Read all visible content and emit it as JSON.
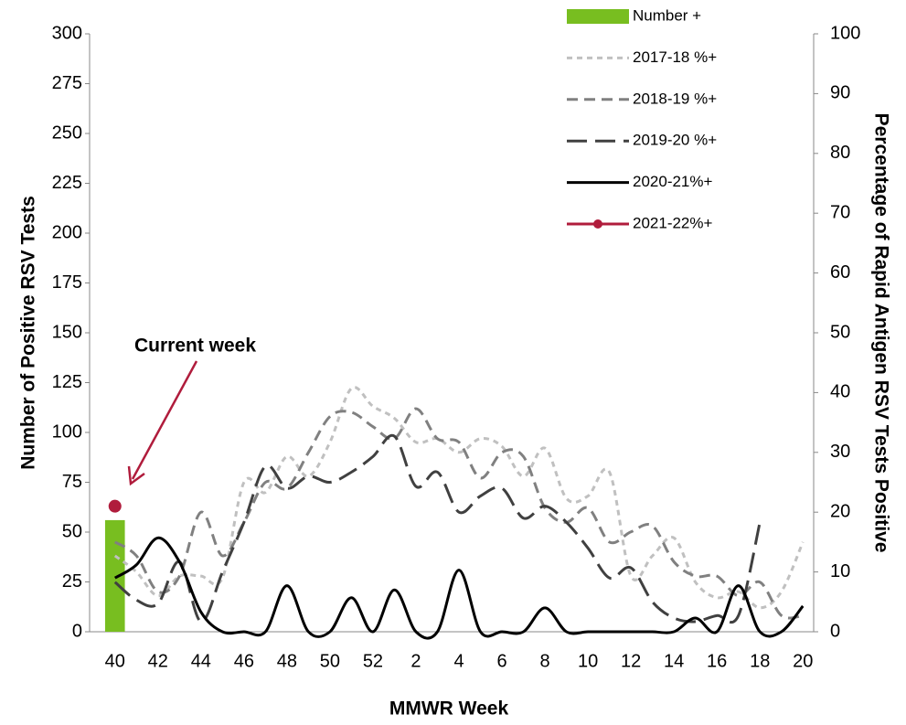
{
  "chart_data": {
    "type": "combo",
    "xlabel": "MMWR Week",
    "ylabel": "Number of Positive RSV Tests",
    "y2label": "Percentage of Rapid Antigen RSV Tests Positive",
    "categories": [
      40,
      null,
      42,
      null,
      44,
      null,
      46,
      null,
      48,
      null,
      50,
      null,
      52,
      null,
      2,
      null,
      4,
      null,
      6,
      null,
      8,
      null,
      10,
      null,
      12,
      null,
      14,
      null,
      16,
      null,
      18,
      null,
      20
    ],
    "ylim": [
      0,
      300
    ],
    "yticks": [
      0,
      25,
      50,
      75,
      100,
      125,
      150,
      175,
      200,
      225,
      250,
      275,
      300
    ],
    "y2lim": [
      0,
      100
    ],
    "y2ticks": [
      0,
      10,
      20,
      30,
      40,
      50,
      60,
      70,
      80,
      90,
      100
    ],
    "grid": false,
    "legend": "top-right",
    "series": [
      {
        "name": "Number +",
        "type": "bar",
        "color": "#78be20",
        "values": [
          56,
          null,
          null,
          null,
          null,
          null,
          null,
          null,
          null,
          null,
          null,
          null,
          null,
          null,
          null,
          null,
          null,
          null,
          null,
          null,
          null,
          null,
          null,
          null,
          null,
          null,
          null,
          null,
          null,
          null,
          null,
          null,
          null
        ]
      },
      {
        "name": "2017-18 %+",
        "type": "line",
        "axis": "y2",
        "color": "#c0c0c0",
        "dash": "short",
        "values": [
          12.7,
          10,
          6,
          9.3,
          9.3,
          9,
          25,
          23.3,
          29.3,
          26,
          31.7,
          40.7,
          37.7,
          35.7,
          31.7,
          32.3,
          30,
          32.3,
          31,
          26,
          30.7,
          22.3,
          22.7,
          26.7,
          9.3,
          12.7,
          15.7,
          8.3,
          5.7,
          6.7,
          4,
          6.7,
          15
        ]
      },
      {
        "name": "2018-19 %+",
        "type": "line",
        "axis": "y2",
        "color": "#808080",
        "dash": "medium",
        "values": [
          15,
          12.7,
          6.7,
          9.3,
          20,
          12.7,
          18.3,
          25,
          24,
          30,
          36,
          36.7,
          34.3,
          32.3,
          37.3,
          32.3,
          31.7,
          25.7,
          30,
          29.3,
          20.7,
          18.3,
          20.7,
          15,
          16.7,
          17.7,
          11.7,
          9.3,
          9.3,
          6,
          8.3,
          2.7,
          2.7
        ]
      },
      {
        "name": "2019-20 %+",
        "type": "line",
        "axis": "y2",
        "color": "#404040",
        "dash": "long",
        "values": [
          8.3,
          5.3,
          4.7,
          11.7,
          1.7,
          10,
          18.3,
          27.7,
          24,
          26,
          25,
          26.7,
          29.3,
          32.7,
          24.3,
          26.7,
          20,
          22.7,
          24,
          19,
          21,
          18.3,
          14,
          9,
          10.7,
          5,
          2.3,
          1.7,
          2.7,
          2.7,
          18.3,
          null,
          null
        ]
      },
      {
        "name": "2020-21%+",
        "type": "line",
        "axis": "y2",
        "color": "#000000",
        "dash": "solid",
        "values": [
          9,
          11.2,
          15.7,
          11.7,
          3.3,
          0,
          0,
          0,
          7.7,
          0,
          0,
          5.7,
          0,
          7,
          0,
          0,
          10.3,
          0,
          0,
          0,
          4,
          0,
          0,
          0,
          0,
          0,
          0,
          2.3,
          0,
          7.7,
          0,
          0,
          4.3
        ]
      },
      {
        "name": "2021-22%+",
        "type": "line",
        "axis": "y2",
        "color": "#b01c3c",
        "dash": "solid",
        "marker": true,
        "values": [
          21,
          null,
          null,
          null,
          null,
          null,
          null,
          null,
          null,
          null,
          null,
          null,
          null,
          null,
          null,
          null,
          null,
          null,
          null,
          null,
          null,
          null,
          null,
          null,
          null,
          null,
          null,
          null,
          null,
          null,
          null,
          null,
          null
        ]
      }
    ],
    "annotation": {
      "text": "Current week",
      "color": "#b01c3c"
    }
  }
}
